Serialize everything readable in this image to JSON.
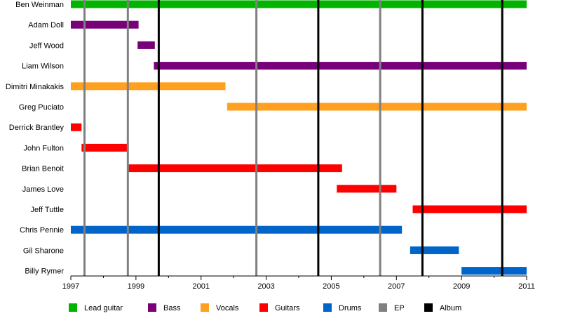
{
  "chart_data": {
    "type": "timeline",
    "title": "",
    "xlabel": "",
    "ylabel": "",
    "xlim": [
      1997,
      2011
    ],
    "x_ticks": [
      "1997",
      "1999",
      "2001",
      "2003",
      "2005",
      "2007",
      "2009",
      "2011"
    ],
    "members": [
      {
        "name": "Ben Weinman",
        "periods": [
          {
            "role": "Lead guitar",
            "start": 1997.0,
            "end": 2011.0
          }
        ]
      },
      {
        "name": "Adam Doll",
        "periods": [
          {
            "role": "Bass",
            "start": 1997.0,
            "end": 1999.08
          }
        ]
      },
      {
        "name": "Jeff Wood",
        "periods": [
          {
            "role": "Bass",
            "start": 1999.05,
            "end": 1999.58
          }
        ]
      },
      {
        "name": "Liam Wilson",
        "periods": [
          {
            "role": "Bass",
            "start": 1999.55,
            "end": 2011.0
          }
        ]
      },
      {
        "name": "Dimitri Minakakis",
        "periods": [
          {
            "role": "Vocals",
            "start": 1997.0,
            "end": 2001.75
          }
        ]
      },
      {
        "name": "Greg Puciato",
        "periods": [
          {
            "role": "Vocals",
            "start": 2001.8,
            "end": 2011.0
          }
        ]
      },
      {
        "name": "Derrick Brantley",
        "periods": [
          {
            "role": "Guitars",
            "start": 1997.0,
            "end": 1997.33
          }
        ]
      },
      {
        "name": "John Fulton",
        "periods": [
          {
            "role": "Guitars",
            "start": 1997.33,
            "end": 1998.75
          }
        ]
      },
      {
        "name": "Brian Benoit",
        "periods": [
          {
            "role": "Guitars",
            "start": 1998.75,
            "end": 2005.33
          }
        ]
      },
      {
        "name": "James Love",
        "periods": [
          {
            "role": "Guitars",
            "start": 2005.17,
            "end": 2007.0
          }
        ]
      },
      {
        "name": "Jeff Tuttle",
        "periods": [
          {
            "role": "Guitars",
            "start": 2007.5,
            "end": 2011.0
          }
        ]
      },
      {
        "name": "Chris Pennie",
        "periods": [
          {
            "role": "Drums",
            "start": 1997.0,
            "end": 2007.17
          }
        ]
      },
      {
        "name": "Gil Sharone",
        "periods": [
          {
            "role": "Drums",
            "start": 2007.42,
            "end": 2008.92
          }
        ]
      },
      {
        "name": "Billy Rymer",
        "periods": [
          {
            "role": "Drums",
            "start": 2009.0,
            "end": 2011.0
          }
        ]
      }
    ],
    "releases": [
      {
        "type": "EP",
        "date": 1997.42
      },
      {
        "type": "EP",
        "date": 1998.75
      },
      {
        "type": "Album",
        "date": 1999.7
      },
      {
        "type": "EP",
        "date": 2002.7
      },
      {
        "type": "Album",
        "date": 2004.6
      },
      {
        "type": "EP",
        "date": 2006.5
      },
      {
        "type": "Album",
        "date": 2007.8
      },
      {
        "type": "Album",
        "date": 2010.25
      }
    ],
    "legend": [
      {
        "label": "Lead guitar",
        "color": "#00b400"
      },
      {
        "label": "Bass",
        "color": "#780078"
      },
      {
        "label": "Vocals",
        "color": "#ffa020"
      },
      {
        "label": "Guitars",
        "color": "#ff0000"
      },
      {
        "label": "Drums",
        "color": "#0064c8"
      },
      {
        "label": "EP",
        "color": "#808080"
      },
      {
        "label": "Album",
        "color": "#000000"
      }
    ],
    "legend_position": "bottom"
  }
}
